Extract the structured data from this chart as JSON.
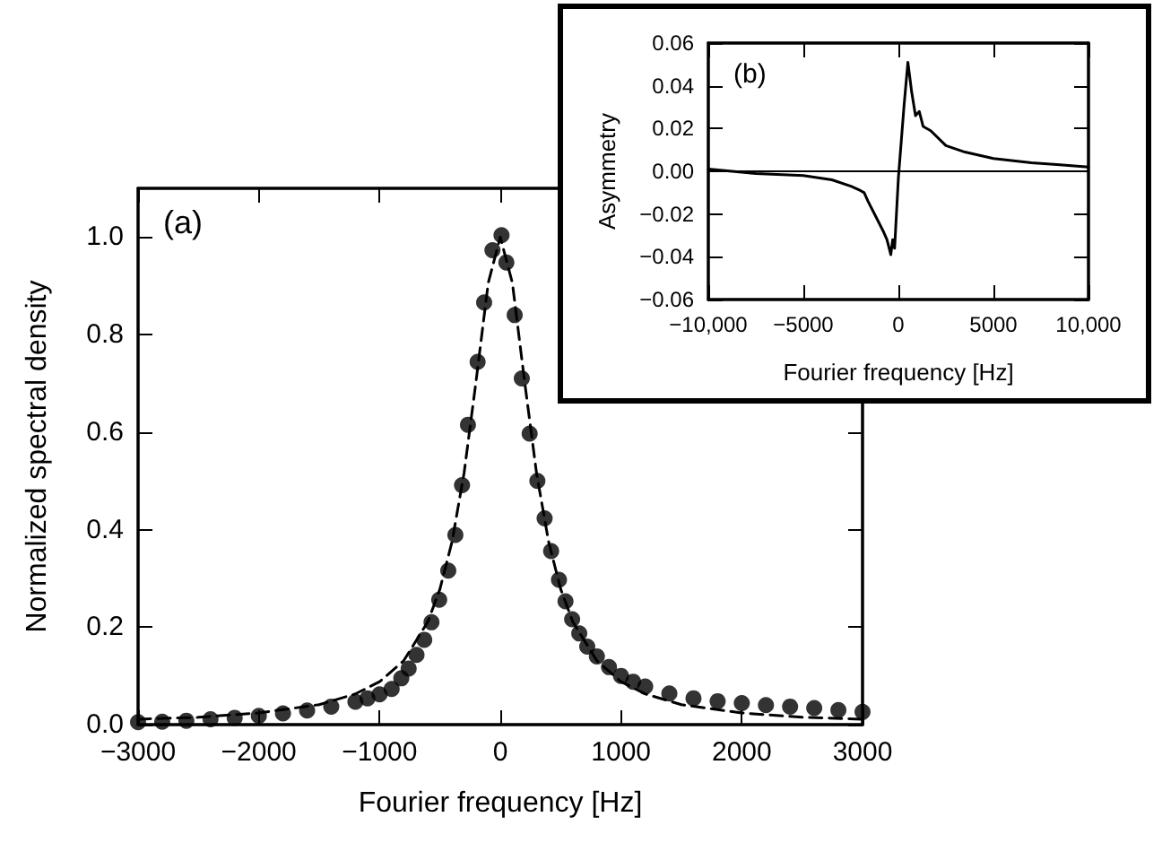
{
  "chart_data": [
    {
      "type": "scatter",
      "xlabel": "Fourier frequency [Hz]",
      "ylabel": "Normalized spectral density",
      "annotations": [
        "(a)"
      ],
      "xlim": [
        -3000,
        3000
      ],
      "ylim": [
        0,
        1.1
      ],
      "xticks": [
        {
          "value": -3000,
          "label": "−3000"
        },
        {
          "value": -2000,
          "label": "−2000"
        },
        {
          "value": -1000,
          "label": "−1000"
        },
        0,
        1000,
        2000,
        3000
      ],
      "yticks": [
        {
          "value": 0,
          "label": "0.0"
        },
        {
          "value": 0.2,
          "label": "0.2"
        },
        {
          "value": 0.4,
          "label": "0.4"
        },
        {
          "value": 0.6,
          "label": "0.6"
        },
        {
          "value": 0.8,
          "label": "0.8"
        },
        {
          "value": 1,
          "label": "1.0"
        }
      ],
      "grid": false,
      "series": [
        {
          "color": "#000000",
          "marker": "circle",
          "x": [
            -3000,
            -2800,
            -2600,
            -2400,
            -2200,
            -2000,
            -1800,
            -1600,
            -1400,
            -1200,
            -1100,
            -1000,
            -900,
            -820,
            -759,
            -694,
            -630,
            -570,
            -506,
            -431,
            -372,
            -317,
            -268,
            -188,
            -134,
            -65,
            10,
            50,
            119,
            178,
            243,
            307,
            367,
            421,
            486,
            540,
            595,
            654,
            720,
            800,
            900,
            1000,
            1100,
            1200,
            1400,
            1600,
            1800,
            2000,
            2200,
            2400,
            2600,
            2800,
            3000
          ],
          "values": [
            0.005,
            0.006,
            0.008,
            0.011,
            0.014,
            0.018,
            0.023,
            0.029,
            0.037,
            0.047,
            0.054,
            0.062,
            0.073,
            0.095,
            0.115,
            0.143,
            0.174,
            0.21,
            0.256,
            0.316,
            0.389,
            0.491,
            0.615,
            0.744,
            0.866,
            0.973,
            1.004,
            0.948,
            0.84,
            0.71,
            0.597,
            0.5,
            0.423,
            0.356,
            0.297,
            0.253,
            0.216,
            0.187,
            0.16,
            0.14,
            0.118,
            0.1,
            0.088,
            0.078,
            0.064,
            0.054,
            0.048,
            0.044,
            0.04,
            0.037,
            0.034,
            0.03,
            0.026
          ]
        },
        {
          "type": "line",
          "color": "#000000",
          "marker": "none",
          "line_style": "dashed",
          "x": [
            -3000,
            -2500,
            -2000,
            -1500,
            -1200,
            -1000,
            -800,
            -600,
            -500,
            -400,
            -300,
            -200,
            -100,
            0,
            100,
            200,
            300,
            400,
            500,
            600,
            800,
            1000,
            1200,
            1500,
            2000,
            2500,
            3000
          ],
          "values": [
            0.011,
            0.015,
            0.024,
            0.041,
            0.063,
            0.088,
            0.131,
            0.211,
            0.278,
            0.375,
            0.516,
            0.706,
            0.906,
            1,
            0.906,
            0.706,
            0.516,
            0.375,
            0.278,
            0.211,
            0.131,
            0.088,
            0.063,
            0.041,
            0.024,
            0.015,
            0.011
          ]
        }
      ]
    },
    {
      "type": "line",
      "xlabel": "Fourier frequency [Hz]",
      "ylabel": "Asymmetry",
      "annotations": [
        "(b)"
      ],
      "xlim": [
        -10000,
        10000
      ],
      "ylim": [
        -0.06,
        0.06
      ],
      "xticks": [
        {
          "value": -10000,
          "label": "−10,000"
        },
        {
          "value": -5000,
          "label": "−5000"
        },
        0,
        5000,
        {
          "value": 10000,
          "label": "10,000"
        }
      ],
      "yticks": [
        {
          "value": -0.06,
          "label": "−0.06"
        },
        {
          "value": -0.04,
          "label": "−0.04"
        },
        {
          "value": -0.02,
          "label": "−0.02"
        },
        {
          "value": 0,
          "label": "0.00"
        },
        {
          "value": 0.02,
          "label": "0.02"
        },
        {
          "value": 0.04,
          "label": "0.04"
        },
        {
          "value": 0.06,
          "label": "0.06"
        }
      ],
      "grid": false,
      "ref_lines": [
        {
          "axis": "y",
          "value": 0,
          "color": "#000000",
          "line_style": "solid"
        }
      ],
      "series": [
        {
          "color": "#000000",
          "marker": "none",
          "line_style": "solid",
          "x": [
            -10000,
            -7500,
            -5000,
            -3500,
            -2500,
            -2000,
            -1800,
            -1600,
            -1200,
            -800,
            -600,
            -400,
            -300,
            -200,
            0,
            300,
            500,
            700,
            900,
            1100,
            1300,
            1700,
            2500,
            3500,
            5000,
            7000,
            8500,
            10000
          ],
          "values": [
            0.001,
            -0.001,
            -0.002,
            -0.004,
            -0.007,
            -0.009,
            -0.01,
            -0.014,
            -0.021,
            -0.028,
            -0.032,
            -0.039,
            -0.032,
            -0.036,
            -0.003,
            0.031,
            0.051,
            0.037,
            0.026,
            0.028,
            0.021,
            0.019,
            0.012,
            0.009,
            0.006,
            0.004,
            0.003,
            0.002
          ]
        }
      ]
    }
  ]
}
